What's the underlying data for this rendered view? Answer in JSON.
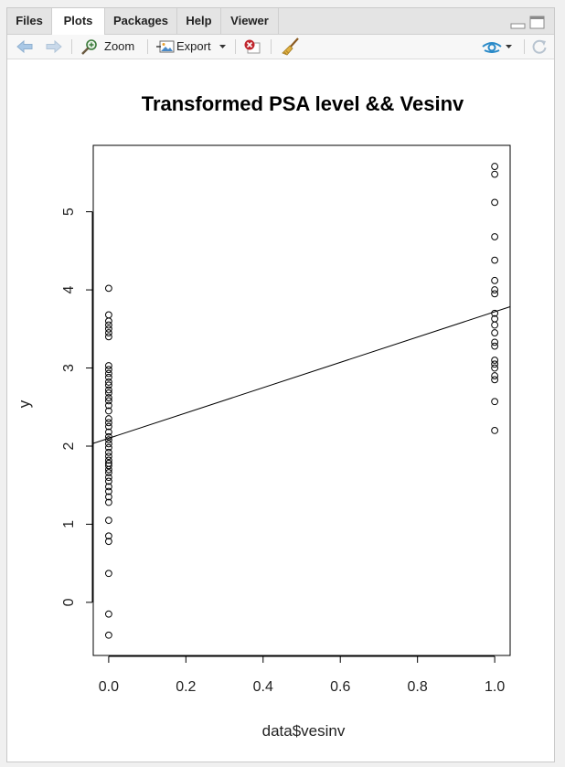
{
  "tabs": [
    {
      "label": "Files"
    },
    {
      "label": "Plots",
      "active": true
    },
    {
      "label": "Packages"
    },
    {
      "label": "Help"
    },
    {
      "label": "Viewer"
    }
  ],
  "toolbar": {
    "zoom_label": "Zoom",
    "export_label": "Export"
  },
  "chart_data": {
    "type": "scatter",
    "title": "Transformed PSA level && Vesinv",
    "xlabel": "data$vesinv",
    "ylabel": "y",
    "xlim": [
      -0.04,
      1.04
    ],
    "ylim": [
      -0.68,
      5.85
    ],
    "xticks": [
      0.0,
      0.2,
      0.4,
      0.6,
      0.8,
      1.0
    ],
    "xtick_labels": [
      "0.0",
      "0.2",
      "0.4",
      "0.6",
      "0.8",
      "1.0"
    ],
    "yticks": [
      0,
      1,
      2,
      3,
      4,
      5
    ],
    "ytick_labels": [
      "0",
      "1",
      "2",
      "3",
      "4",
      "5"
    ],
    "points_x0": [
      -0.42,
      -0.15,
      0.37,
      0.78,
      0.85,
      1.05,
      1.28,
      1.35,
      1.42,
      1.48,
      1.55,
      1.6,
      1.66,
      1.7,
      1.75,
      1.78,
      1.82,
      1.87,
      1.92,
      1.98,
      2.03,
      2.08,
      2.12,
      2.18,
      2.25,
      2.3,
      2.35,
      2.45,
      2.52,
      2.58,
      2.62,
      2.68,
      2.72,
      2.78,
      2.82,
      2.88,
      2.93,
      2.98,
      3.03,
      3.4,
      3.45,
      3.5,
      3.55,
      3.6,
      3.68,
      4.02
    ],
    "points_x1": [
      2.2,
      2.57,
      2.85,
      2.9,
      3.0,
      3.05,
      3.1,
      3.28,
      3.33,
      3.45,
      3.55,
      3.63,
      3.7,
      3.95,
      4.0,
      4.12,
      4.38,
      4.68,
      5.12,
      5.48,
      5.58
    ],
    "regression_line": {
      "intercept": 2.1,
      "slope": 1.62
    }
  }
}
